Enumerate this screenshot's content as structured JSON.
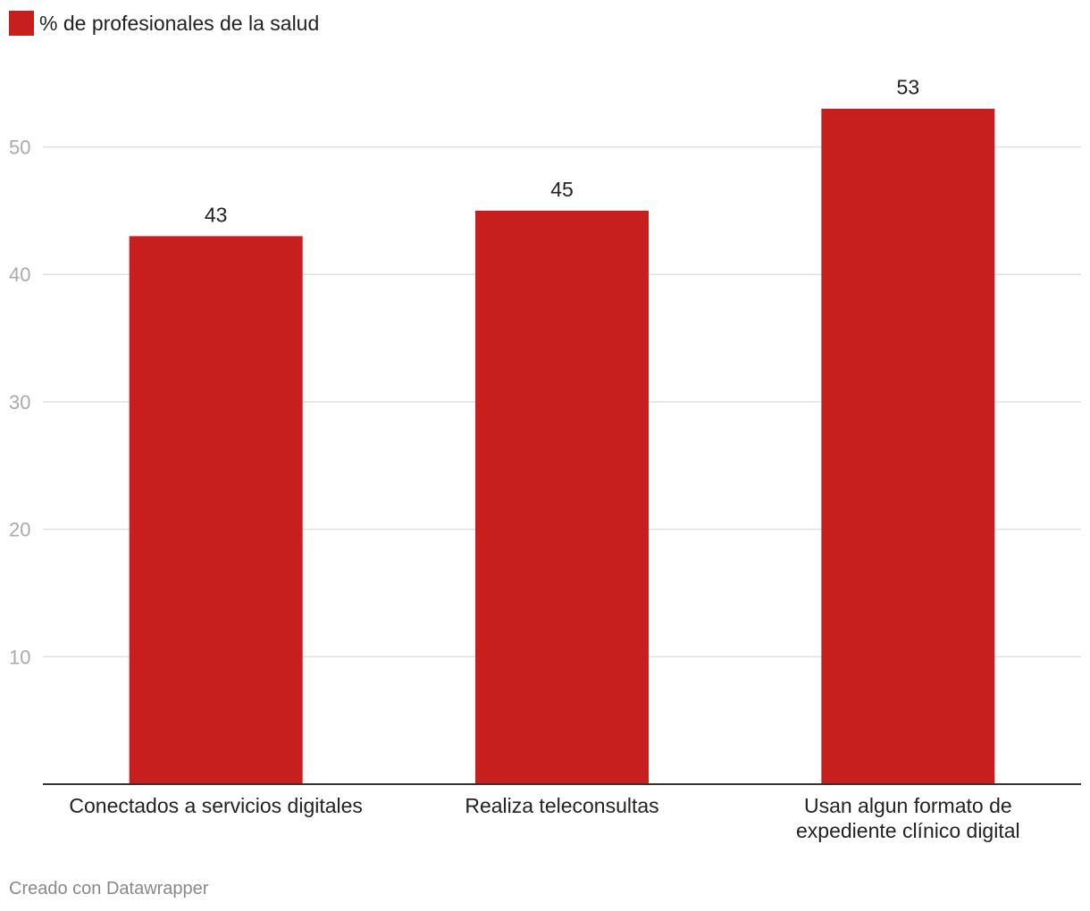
{
  "legend": {
    "label": "% de profesionales de la salud"
  },
  "footer": {
    "credit": "Creado con Datawrapper"
  },
  "colors": {
    "bar": "#c71e1e",
    "grid": "#e0e0e0",
    "axis": "#333333",
    "tick": "#aaaaaa",
    "text": "#222222"
  },
  "chart_data": {
    "type": "bar",
    "categories": [
      [
        "Conectados a servicios digitales"
      ],
      [
        "Realiza teleconsultas"
      ],
      [
        "Usan algun formato de",
        "expediente clínico digital"
      ]
    ],
    "series": [
      {
        "name": "% de profesionales de la salud",
        "values": [
          43,
          45,
          53
        ]
      }
    ],
    "yticks": [
      10,
      20,
      30,
      40,
      50
    ],
    "ylim": [
      0,
      60
    ],
    "grid": true,
    "legend_position": "top-left",
    "xlabel": "",
    "ylabel": ""
  }
}
